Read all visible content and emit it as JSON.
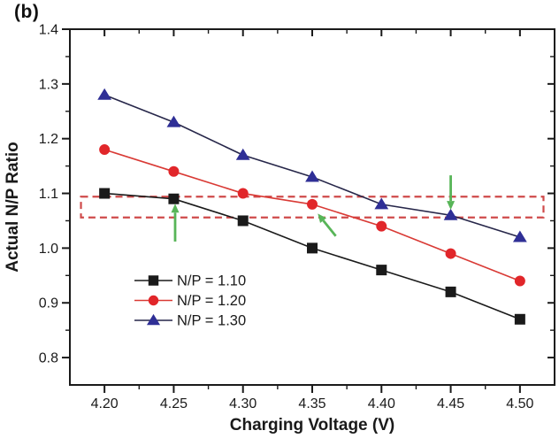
{
  "panel_label": "(b)",
  "chart_data": {
    "type": "line",
    "title": "",
    "xlabel": "Charging Voltage (V)",
    "ylabel": "Actual N/P Ratio",
    "x": [
      4.2,
      4.25,
      4.3,
      4.35,
      4.4,
      4.45,
      4.5
    ],
    "x_tick_labels": [
      "4.20",
      "4.25",
      "4.30",
      "4.35",
      "4.40",
      "4.45",
      "4.50"
    ],
    "y_ticks": [
      0.8,
      0.9,
      1.0,
      1.1,
      1.2,
      1.3,
      1.4
    ],
    "y_tick_labels": [
      "0.8",
      "0.9",
      "1.0",
      "1.1",
      "1.2",
      "1.3",
      "1.4"
    ],
    "xlim": [
      4.175,
      4.525
    ],
    "ylim": [
      0.75,
      1.4
    ],
    "x_minor_step": 0.025,
    "y_minor_step": 0.05,
    "grid": false,
    "axis_color": "#1a1a1a",
    "legend_position": "inside-lower-left",
    "series": [
      {
        "name": "N/P = 1.10",
        "marker": "square",
        "marker_color": "#1a1a1a",
        "line_color": "#1a1a1a",
        "values": [
          1.1,
          1.09,
          1.05,
          1.0,
          0.96,
          0.92,
          0.87
        ]
      },
      {
        "name": "N/P = 1.20",
        "marker": "circle",
        "marker_color": "#e1262a",
        "line_color": "#d93a35",
        "values": [
          1.18,
          1.14,
          1.1,
          1.08,
          1.04,
          0.99,
          0.94
        ]
      },
      {
        "name": "N/P = 1.30",
        "marker": "triangle",
        "marker_color": "#2f2f96",
        "line_color": "#27274a",
        "values": [
          1.28,
          1.23,
          1.17,
          1.13,
          1.08,
          1.06,
          1.02
        ]
      }
    ],
    "annotations": {
      "highlight_box": {
        "x_min": 4.183,
        "x_max": 4.517,
        "y_min": 1.056,
        "y_max": 1.094,
        "color": "#cf4a4a",
        "style": "dashed"
      },
      "arrows": [
        {
          "from_x": 4.251,
          "from_y": 1.012,
          "to_x": 4.251,
          "to_y": 1.081,
          "color": "#58b558"
        },
        {
          "from_x": 4.367,
          "from_y": 1.022,
          "to_x": 4.354,
          "to_y": 1.063,
          "color": "#58b558"
        },
        {
          "from_x": 4.45,
          "from_y": 1.133,
          "to_x": 4.45,
          "to_y": 1.07,
          "color": "#58b558"
        }
      ]
    }
  }
}
